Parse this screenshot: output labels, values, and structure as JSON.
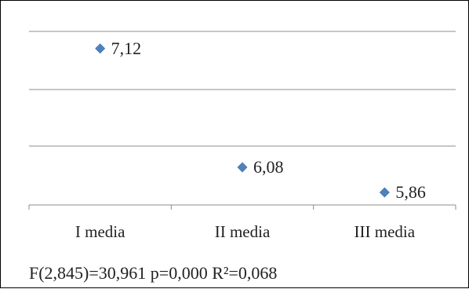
{
  "chart_data": {
    "type": "scatter",
    "categories": [
      "I media",
      "II media",
      "III media"
    ],
    "values": [
      7.12,
      6.08,
      5.86
    ],
    "data_labels": [
      "7,12",
      "6,08",
      "5,86"
    ],
    "title": "",
    "xlabel": "",
    "ylabel": "",
    "ylim": [
      5.75,
      7.27
    ],
    "grid": true,
    "legend": "none",
    "marker": "diamond"
  },
  "colors": {
    "marker": "#4F81BD",
    "grid": "#8C8C8C",
    "axis": "#8C8C8C",
    "text": "#222222",
    "border": "#000000"
  },
  "footer": {
    "stats": "F(2,845)=30,961 p=0,000 R²=0,068"
  }
}
